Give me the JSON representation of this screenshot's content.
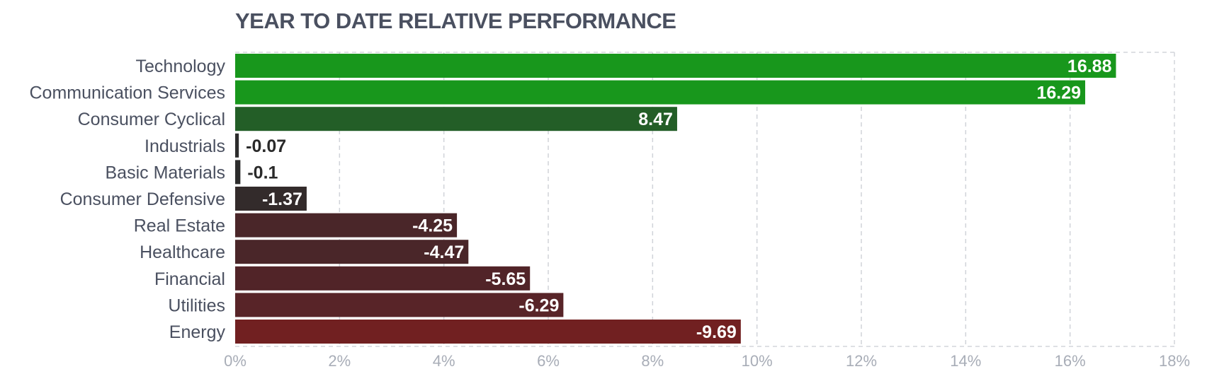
{
  "chart_data": {
    "type": "bar",
    "orientation": "horizontal",
    "title": "YEAR TO DATE RELATIVE PERFORMANCE",
    "categories": [
      "Technology",
      "Communication Services",
      "Consumer Cyclical",
      "Industrials",
      "Basic Materials",
      "Consumer Defensive",
      "Real Estate",
      "Healthcare",
      "Financial",
      "Utilities",
      "Energy"
    ],
    "values": [
      16.88,
      16.29,
      8.47,
      -0.07,
      -0.1,
      -1.37,
      -4.25,
      -4.47,
      -5.65,
      -6.29,
      -9.69
    ],
    "data_labels": [
      "16.88",
      "16.29",
      "8.47",
      "-0.07",
      "-0.1",
      "-1.37",
      "-4.25",
      "-4.47",
      "-5.65",
      "-6.29",
      "-9.69"
    ],
    "bar_colors": [
      "#18971c",
      "#18971c",
      "#235e27",
      "#2c2c2c",
      "#2c2c2c",
      "#332b2b",
      "#4a2629",
      "#4a2629",
      "#512428",
      "#582428",
      "#712021"
    ],
    "bars_extend_by": "absolute value",
    "xlim": [
      0,
      18
    ],
    "x_ticks": [
      0,
      2,
      4,
      6,
      8,
      10,
      12,
      14,
      16,
      18
    ],
    "x_tick_labels": [
      "0%",
      "2%",
      "4%",
      "6%",
      "8%",
      "10%",
      "12%",
      "14%",
      "16%",
      "18%"
    ],
    "xlabel": "",
    "ylabel": "",
    "grid": true,
    "grid_style": "dashed vertical",
    "legend": "none"
  }
}
